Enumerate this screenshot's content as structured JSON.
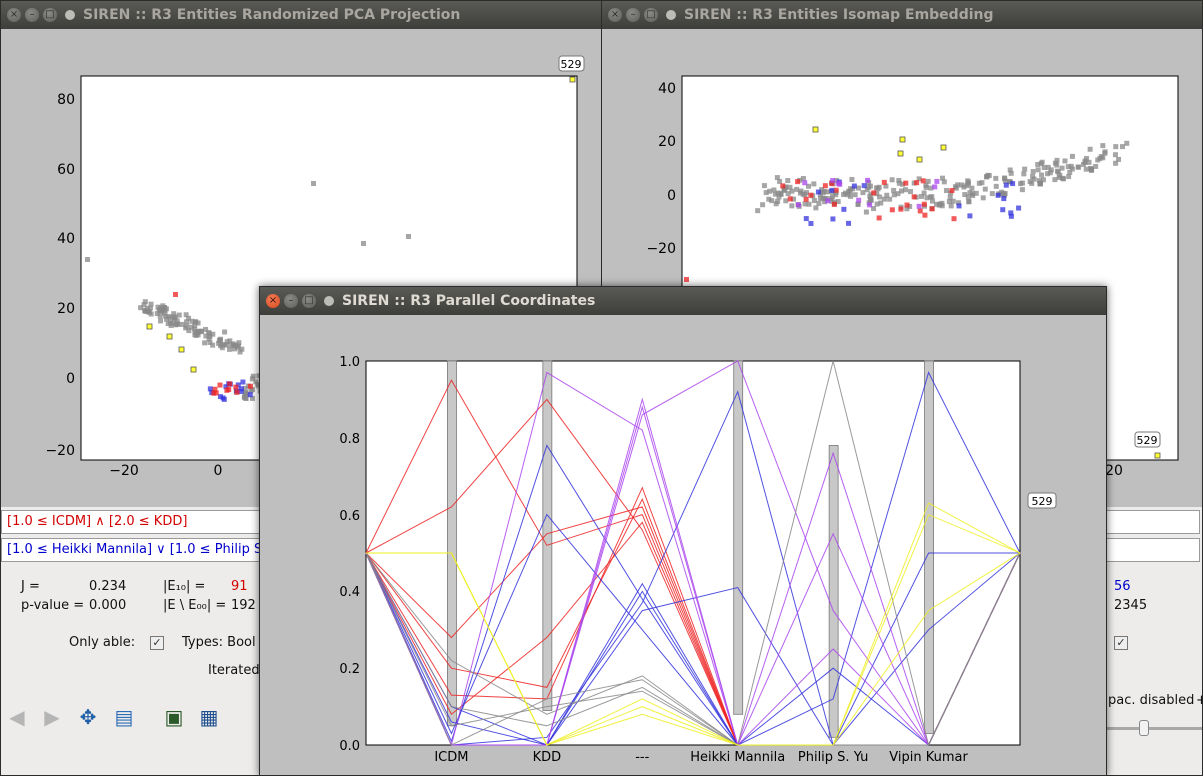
{
  "windows": {
    "pca": {
      "title": "SIREN :: R3 Entities Randomized PCA Projection",
      "x_ticks": [
        "−20",
        "0"
      ],
      "y_ticks": [
        "80",
        "60",
        "40",
        "20",
        "0",
        "−20"
      ],
      "annotation": "529"
    },
    "isomap": {
      "title": "SIREN :: R3 Entities Isomap Embedding",
      "y_ticks": [
        "40",
        "20",
        "0",
        "−20"
      ],
      "x_tick_partial": "20",
      "annotation": "529"
    },
    "parallel": {
      "title": "SIREN :: R3 Parallel Coordinates",
      "y_ticks": [
        "1.0",
        "0.8",
        "0.6",
        "0.4",
        "0.2",
        "0.0"
      ],
      "axes": [
        "ICDM",
        "KDD",
        "---",
        "Heikki Mannila",
        "Philip S. Yu",
        "Vipin Kumar"
      ],
      "annotation": "529"
    }
  },
  "rules": {
    "left": "[1.0 ≤ ICDM] ∧   [2.0 ≤ KDD]",
    "right": "[1.0 ≤ Heikki Mannila] ∨   [1.0 ≤ Philip S"
  },
  "stats": {
    "j_label": "J =",
    "j_value": "0.234",
    "p_label": "p-value =",
    "p_value": "0.000",
    "e10_label": "|E₁₀| =",
    "e10_value": "91",
    "e00_label": "|E \\ E₀₀| =",
    "e00_value": "192",
    "right_value_1": "56",
    "right_value_2": "2345"
  },
  "options": {
    "only_able_label": "Only able:",
    "types_label": "Types: Bool",
    "iterated_label": "Iterated",
    "pac_label": "pac. disabled",
    "plus_label": "+"
  },
  "colors": {
    "left_red": "#d40000",
    "right_blue": "#0000cc",
    "bar_gray": "#c8c8c8"
  },
  "chart_data": {
    "type": "line",
    "title": "",
    "xlabel": "",
    "ylabel": "",
    "categories": [
      "ICDM",
      "KDD",
      "---",
      "Heikki Mannila",
      "Philip S. Yu",
      "Vipin Kumar"
    ],
    "ylim": [
      0,
      1
    ],
    "range_bars": [
      {
        "axis": "ICDM",
        "low": 0.05,
        "high": 1.0
      },
      {
        "axis": "KDD",
        "low": 0.09,
        "high": 1.0
      },
      {
        "axis": "Heikki Mannila",
        "low": 0.08,
        "high": 1.0
      },
      {
        "axis": "Philip S. Yu",
        "low": 0.02,
        "high": 0.78
      },
      {
        "axis": "Vipin Kumar",
        "low": 0.03,
        "high": 1.0
      }
    ],
    "series": [
      {
        "values": [
          0.13,
          0.12,
          0.67,
          0.0,
          0.0,
          0.0
        ]
      },
      {
        "values": [
          0.2,
          0.15,
          0.64,
          0.0,
          0.0,
          0.0
        ]
      },
      {
        "values": [
          0.28,
          0.55,
          0.62,
          0.0,
          0.0,
          0.0
        ]
      },
      {
        "values": [
          0.95,
          0.52,
          0.6,
          0.0,
          0.0,
          0.0
        ]
      },
      {
        "values": [
          0.08,
          0.28,
          0.58,
          0.0,
          0.0,
          0.0
        ]
      },
      {
        "values": [
          0.62,
          0.9,
          0.56,
          0.0,
          0.0,
          0.0
        ]
      },
      {
        "values": [
          0.1,
          0.0,
          0.42,
          0.0,
          0.0,
          0.0
        ]
      },
      {
        "values": [
          0.06,
          0.0,
          0.4,
          0.0,
          0.0,
          0.0
        ]
      },
      {
        "values": [
          0.0,
          0.02,
          0.37,
          0.92,
          0.0,
          0.5
        ]
      },
      {
        "values": [
          0.0,
          0.0,
          0.35,
          0.41,
          0.0,
          0.3
        ]
      },
      {
        "values": [
          0.01,
          0.78,
          0.38,
          0.0,
          0.2,
          0.0
        ]
      },
      {
        "values": [
          0.03,
          0.6,
          0.3,
          0.0,
          0.12,
          0.97
        ]
      },
      {
        "values": [
          0.0,
          0.0,
          0.9,
          0.0,
          0.55,
          0.0
        ]
      },
      {
        "values": [
          0.0,
          0.0,
          0.86,
          1.0,
          0.35,
          0.0
        ]
      },
      {
        "values": [
          0.0,
          0.97,
          0.82,
          0.0,
          0.25,
          0.0
        ]
      },
      {
        "values": [
          0.0,
          0.0,
          0.88,
          0.0,
          0.76,
          0.0
        ]
      },
      {
        "values": [
          0.0,
          0.12,
          0.17,
          0.0,
          0.0,
          0.0
        ]
      },
      {
        "values": [
          0.1,
          0.05,
          0.15,
          0.0,
          1.0,
          0.0
        ]
      },
      {
        "values": [
          0.22,
          0.08,
          0.18,
          0.0,
          0.0,
          0.0
        ]
      },
      {
        "values": [
          0.05,
          0.1,
          0.14,
          0.0,
          0.0,
          0.0
        ]
      },
      {
        "values": [
          0.5,
          0.0,
          0.1,
          0.0,
          0.0,
          0.6
        ]
      },
      {
        "values": [
          0.5,
          0.0,
          0.08,
          0.0,
          0.0,
          0.35
        ]
      },
      {
        "values": [
          0.5,
          0.0,
          0.12,
          0.0,
          0.0,
          0.63
        ]
      }
    ]
  }
}
